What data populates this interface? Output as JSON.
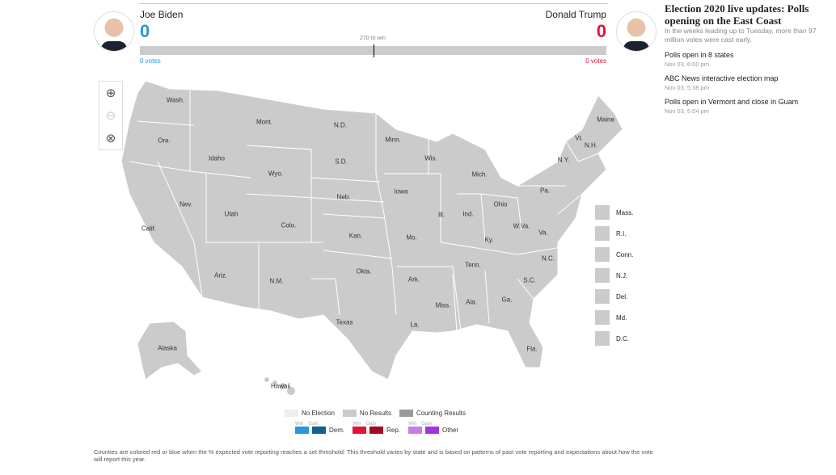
{
  "header": {
    "dem": {
      "name": "Joe Biden",
      "electoral": "0",
      "votes": "0 votes",
      "color": "#2897dd"
    },
    "rep": {
      "name": "Donald Trump",
      "electoral": "0",
      "votes": "0 votes",
      "color": "#e11436"
    },
    "threshold": "270 to win",
    "progress_dem": 0,
    "progress_rep": 0
  },
  "sidebar": {
    "headline": "Election 2020 live updates: Polls opening on the East Coast",
    "description": "In the weeks leading up to Tuesday, more than 97 million votes were cast early.",
    "items": [
      {
        "title": "Polls open in 8 states",
        "time": "Nov 03, 6:00 pm"
      },
      {
        "title": "ABC News interactive election map",
        "time": "Nov 03, 5:38 pm"
      },
      {
        "title": "Polls open in Vermont and close in Guam",
        "time": "Nov 03, 5:04 pm"
      }
    ]
  },
  "map_controls": [
    "zoom-in-icon",
    "zoom-out-icon",
    "reset-icon"
  ],
  "states": [
    "Wash.",
    "Ore.",
    "Calif.",
    "Nev.",
    "Idaho",
    "Mont.",
    "Wyo.",
    "Utah",
    "Colo.",
    "Ariz.",
    "N.M.",
    "N.D.",
    "S.D.",
    "Neb.",
    "Kan.",
    "Okla.",
    "Texas",
    "Minn.",
    "Iowa",
    "Mo.",
    "Ark.",
    "La.",
    "Wis.",
    "Ill.",
    "Mich.",
    "Ind.",
    "Ohio",
    "Ky.",
    "Tenn.",
    "Miss.",
    "Ala.",
    "Ga.",
    "Fla.",
    "S.C.",
    "N.C.",
    "Va.",
    "W.Va.",
    "Pa.",
    "N.Y.",
    "Vt.",
    "N.H.",
    "Maine",
    "Alaska",
    "Hawaii"
  ],
  "small_states": [
    "Mass.",
    "R.I.",
    "Conn.",
    "N.J.",
    "Del.",
    "Md.",
    "D.C."
  ],
  "legend": {
    "status": [
      {
        "label": "No Election",
        "color": "#eeeeee"
      },
      {
        "label": "No Results",
        "color": "#cbcbcb"
      },
      {
        "label": "Counting Results",
        "color": "#999999"
      }
    ],
    "win": "Win",
    "gain": "Gain",
    "parties": [
      {
        "label": "Dem.",
        "win": "#2897dd",
        "gain": "#14608f"
      },
      {
        "label": "Rep.",
        "win": "#e11436",
        "gain": "#a30a25"
      },
      {
        "label": "Other",
        "win": "#c77de8",
        "gain": "#a632dc"
      }
    ]
  },
  "footnote": "Counties are colored red or blue when the % expected vote reporting reaches a set threshold. This threshold varies by state and is based on patterns of past vote reporting and expectations about how the vote will report this year."
}
